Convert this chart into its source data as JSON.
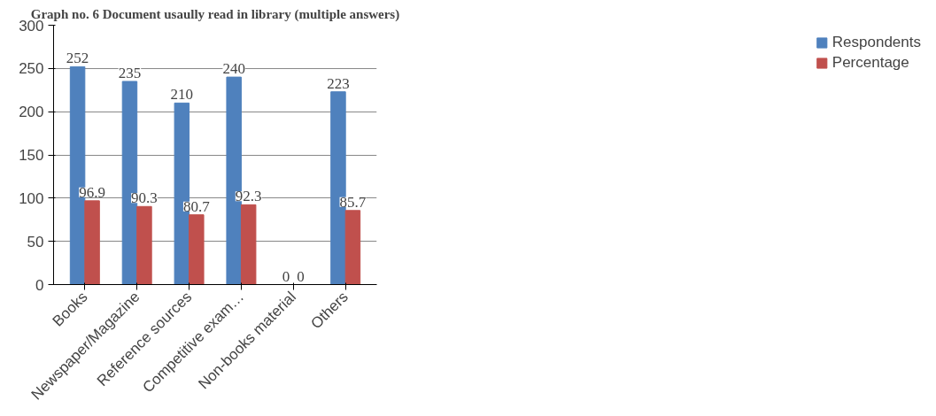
{
  "chart_data": {
    "type": "bar",
    "title": "Graph no. 6 Document usaully read in library (multiple answers)",
    "categories": [
      "Books",
      "Newspaper/Magazine",
      "Reference sources",
      "Competitive exam…",
      "Non-books material",
      "Others"
    ],
    "series": [
      {
        "name": "Respondents",
        "color": "#4f81bd",
        "values": [
          252,
          235,
          210,
          240,
          0,
          223
        ]
      },
      {
        "name": "Percentage",
        "color": "#c0504d",
        "values": [
          96.9,
          90.3,
          80.7,
          92.3,
          0,
          85.7
        ]
      }
    ],
    "ylim": [
      0,
      300
    ],
    "yticks": [
      0,
      50,
      100,
      150,
      200,
      250,
      300
    ],
    "grid": "y",
    "legend": "right",
    "data_labels": true
  }
}
